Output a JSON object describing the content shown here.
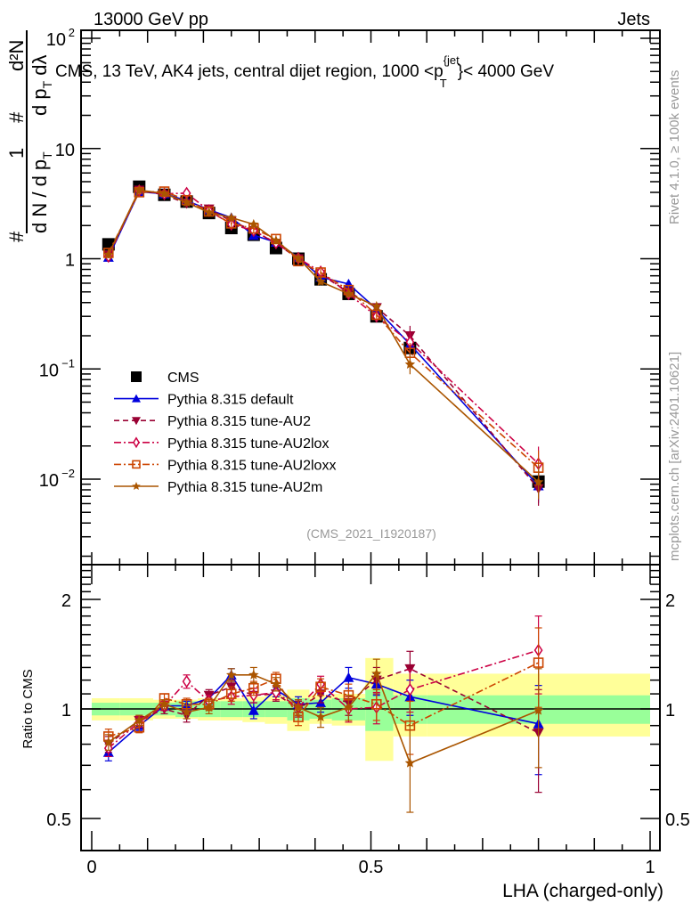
{
  "header": {
    "left": "13000 GeV pp",
    "right": "Jets"
  },
  "side_labels": {
    "rivet": "Rivet 4.1.0, ≥ 100k events",
    "mcplots": "mcplots.cern.ch [arXiv:2401.10621]"
  },
  "chart_data": [
    {
      "type": "line",
      "panel": "main",
      "title": "CMS, 13 TeV, AK4 jets, central dijet region, 1000 <p_T^{jet}< 4000 GeV",
      "title_parts": {
        "before": "CMS, 13 TeV, AK4 jets, central dijet region, 1000 <p",
        "sup": "{jet",
        "sub": "T",
        "after": "}< 4000 GeV"
      },
      "xlabel": "",
      "ylabel_parts": {
        "num1": "1",
        "den1": "d N / d p",
        "den1_sub": "T",
        "hash": "#",
        "num2": "d²N",
        "den2": "d p",
        "den2_sub": "T",
        "den2_end": " dλ"
      },
      "yscale": "log",
      "ylim": [
        0.002,
        120
      ],
      "xlim": [
        -0.02,
        1.02
      ],
      "yticks": [
        {
          "v": 0.01,
          "label": "10",
          "exp": "−2"
        },
        {
          "v": 0.1,
          "label": "10",
          "exp": "−1"
        },
        {
          "v": 1,
          "label": "1",
          "exp": ""
        },
        {
          "v": 10,
          "label": "10",
          "exp": ""
        },
        {
          "v": 100,
          "label": "10",
          "exp": "2"
        }
      ],
      "watermark": "(CMS_2021_I1920187)",
      "legend_position": "lower-left",
      "x": [
        0.03,
        0.085,
        0.13,
        0.17,
        0.21,
        0.25,
        0.29,
        0.33,
        0.37,
        0.41,
        0.46,
        0.51,
        0.57,
        0.8
      ],
      "series": [
        {
          "name": "CMS",
          "color": "#000000",
          "marker": "square",
          "line": "none",
          "values": [
            1.35,
            4.5,
            3.8,
            3.3,
            2.6,
            1.9,
            1.65,
            1.25,
            1.0,
            0.65,
            0.48,
            0.3,
            0.155,
            0.0095
          ]
        },
        {
          "name": "Pythia 8.315 default",
          "color": "#0000dd",
          "marker": "triangle-up",
          "line": "solid",
          "values": [
            1.03,
            4.05,
            3.88,
            3.37,
            2.78,
            2.36,
            1.63,
            1.41,
            1.03,
            0.68,
            0.59,
            0.35,
            0.167,
            0.0087
          ]
        },
        {
          "name": "Pythia 8.315 tune-AU2",
          "color": "#990033",
          "marker": "triangle-down",
          "line": "dashed",
          "values": [
            1.08,
            4.19,
            3.8,
            3.17,
            2.83,
            2.19,
            1.8,
            1.38,
            1.0,
            0.72,
            0.5,
            0.36,
            0.2,
            0.0082
          ]
        },
        {
          "name": "Pythia 8.315 tune-AU2lox",
          "color": "#cc0044",
          "marker": "diamond-open",
          "line": "dashdot",
          "values": [
            1.05,
            4.14,
            3.88,
            3.93,
            2.73,
            2.05,
            1.8,
            1.39,
            1.01,
            0.76,
            0.48,
            0.3,
            0.175,
            0.0138
          ]
        },
        {
          "name": "Pythia 8.315 tune-AU2loxx",
          "color": "#cc4400",
          "marker": "square-open",
          "line": "dashdot",
          "values": [
            1.13,
            4.01,
            4.07,
            3.4,
            2.68,
            2.09,
            1.88,
            1.51,
            0.95,
            0.75,
            0.52,
            0.31,
            0.14,
            0.0127
          ]
        },
        {
          "name": "Pythia 8.315 tune-AU2m",
          "color": "#aa5500",
          "marker": "star",
          "line": "solid",
          "values": [
            1.09,
            4.19,
            3.91,
            3.23,
            2.63,
            2.36,
            2.05,
            1.46,
            1.01,
            0.62,
            0.48,
            0.37,
            0.11,
            0.0094
          ]
        }
      ]
    },
    {
      "type": "line",
      "panel": "ratio",
      "ylabel": "Ratio to CMS",
      "xlabel": "LHA (charged-only)",
      "yscale": "log",
      "ylim": [
        0.4,
        2.4
      ],
      "xlim": [
        -0.02,
        1.02
      ],
      "xticks": [
        {
          "v": 0,
          "label": "0"
        },
        {
          "v": 0.5,
          "label": "0.5"
        },
        {
          "v": 1,
          "label": "1"
        }
      ],
      "yticks": [
        {
          "v": 0.5,
          "label": "0.5"
        },
        {
          "v": 1,
          "label": "1"
        },
        {
          "v": 2,
          "label": "2"
        }
      ],
      "band_bins": [
        [
          0.0,
          0.05
        ],
        [
          0.05,
          0.11
        ],
        [
          0.11,
          0.15
        ],
        [
          0.15,
          0.19
        ],
        [
          0.19,
          0.23
        ],
        [
          0.23,
          0.27
        ],
        [
          0.27,
          0.31
        ],
        [
          0.31,
          0.35
        ],
        [
          0.35,
          0.39
        ],
        [
          0.39,
          0.43
        ],
        [
          0.43,
          0.49
        ],
        [
          0.49,
          0.54
        ],
        [
          0.54,
          0.6
        ],
        [
          0.6,
          1.0
        ]
      ],
      "band_inner": [
        [
          0.96,
          1.04
        ],
        [
          0.96,
          1.04
        ],
        [
          0.96,
          1.04
        ],
        [
          0.95,
          1.05
        ],
        [
          0.95,
          1.05
        ],
        [
          0.95,
          1.05
        ],
        [
          0.95,
          1.05
        ],
        [
          0.95,
          1.05
        ],
        [
          0.93,
          1.07
        ],
        [
          0.94,
          1.06
        ],
        [
          0.93,
          1.07
        ],
        [
          0.87,
          1.13
        ],
        [
          0.91,
          1.09
        ],
        [
          0.91,
          1.09
        ]
      ],
      "band_outer": [
        [
          0.93,
          1.07
        ],
        [
          0.93,
          1.07
        ],
        [
          0.94,
          1.06
        ],
        [
          0.94,
          1.06
        ],
        [
          0.93,
          1.07
        ],
        [
          0.93,
          1.07
        ],
        [
          0.92,
          1.08
        ],
        [
          0.91,
          1.09
        ],
        [
          0.87,
          1.13
        ],
        [
          0.91,
          1.09
        ],
        [
          0.9,
          1.1
        ],
        [
          0.72,
          1.38
        ],
        [
          0.84,
          1.25
        ],
        [
          0.84,
          1.25
        ]
      ],
      "band_colors": {
        "inner": "#99ff99",
        "outer": "#ffff99"
      },
      "x": [
        0.03,
        0.085,
        0.13,
        0.17,
        0.21,
        0.25,
        0.29,
        0.33,
        0.37,
        0.41,
        0.46,
        0.51,
        0.57,
        0.8
      ],
      "series": [
        {
          "name": "Pythia 8.315 default",
          "color": "#0000dd",
          "marker": "triangle-up",
          "line": "solid",
          "values": [
            0.76,
            0.9,
            1.02,
            1.02,
            1.07,
            1.24,
            0.99,
            1.13,
            1.03,
            1.04,
            1.22,
            1.17,
            1.08,
            0.91
          ],
          "err": [
            0.04,
            0.03,
            0.03,
            0.03,
            0.04,
            0.05,
            0.05,
            0.05,
            0.05,
            0.06,
            0.08,
            0.08,
            0.12,
            0.25
          ]
        },
        {
          "name": "Pythia 8.315 tune-AU2",
          "color": "#990033",
          "marker": "triangle-down",
          "line": "dashed",
          "values": [
            0.8,
            0.93,
            1.0,
            0.96,
            1.09,
            1.15,
            1.09,
            1.1,
            1.0,
            1.1,
            1.04,
            1.2,
            1.29,
            0.86
          ],
          "err": [
            0.04,
            0.03,
            0.03,
            0.04,
            0.04,
            0.05,
            0.05,
            0.05,
            0.05,
            0.06,
            0.08,
            0.1,
            0.15,
            0.27
          ]
        },
        {
          "name": "Pythia 8.315 tune-AU2lox",
          "color": "#cc0044",
          "marker": "diamond-open",
          "line": "dashdot",
          "values": [
            0.78,
            0.92,
            1.02,
            1.19,
            1.05,
            1.08,
            1.09,
            1.11,
            1.01,
            1.17,
            1.0,
            1.01,
            1.13,
            1.45
          ],
          "err": [
            0.04,
            0.03,
            0.03,
            0.05,
            0.04,
            0.05,
            0.05,
            0.05,
            0.05,
            0.06,
            0.08,
            0.1,
            0.15,
            0.35
          ]
        },
        {
          "name": "Pythia 8.315 tune-AU2loxx",
          "color": "#cc4400",
          "marker": "square-open",
          "line": "dashdot",
          "values": [
            0.84,
            0.89,
            1.07,
            1.03,
            1.03,
            1.1,
            1.14,
            1.21,
            0.95,
            1.15,
            1.09,
            1.03,
            0.9,
            1.34
          ],
          "err": [
            0.04,
            0.03,
            0.03,
            0.04,
            0.04,
            0.05,
            0.05,
            0.05,
            0.05,
            0.06,
            0.08,
            0.1,
            0.15,
            0.33
          ]
        },
        {
          "name": "Pythia 8.315 tune-AU2m",
          "color": "#aa5500",
          "marker": "star",
          "line": "solid",
          "values": [
            0.81,
            0.93,
            1.03,
            0.98,
            1.01,
            1.24,
            1.24,
            1.17,
            1.01,
            0.95,
            1.01,
            1.25,
            0.71,
            0.99
          ],
          "err": [
            0.04,
            0.03,
            0.03,
            0.04,
            0.04,
            0.05,
            0.06,
            0.05,
            0.05,
            0.06,
            0.08,
            0.12,
            0.19,
            0.3
          ]
        }
      ]
    }
  ]
}
